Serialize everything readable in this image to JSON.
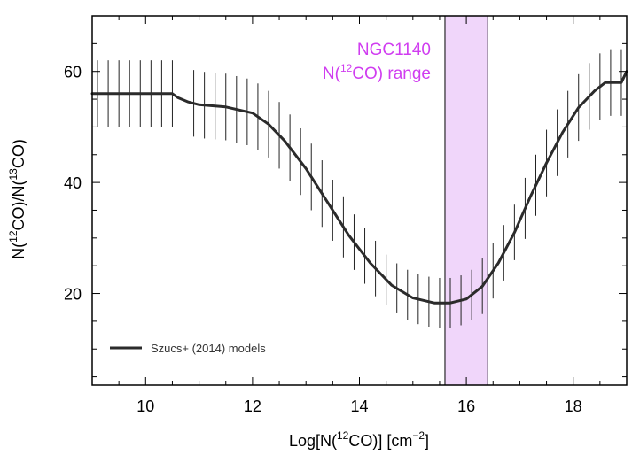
{
  "chart_data": {
    "type": "line",
    "xlabel": "Log[N(12CO)] [cm−2]",
    "xlabel_parts": {
      "pre": "Log[N(",
      "sup1": "12",
      "mid": "CO)] [cm",
      "sup2": "−2",
      "post": "]"
    },
    "ylabel": "N(12CO)/N(13CO)",
    "ylabel_parts": {
      "pre": "N(",
      "sup1": "12",
      "mid": "CO)/N(",
      "sup2": "13",
      "post": "CO)"
    },
    "xlim": [
      9.0,
      19.0
    ],
    "ylim": [
      3.5,
      70.0
    ],
    "xticks": [
      10,
      12,
      14,
      16,
      18
    ],
    "xtick_labels": [
      "10",
      "12",
      "14",
      "16",
      "18"
    ],
    "xminor_step": 0.5,
    "yticks": [
      20,
      40,
      60
    ],
    "ytick_labels": [
      "20",
      "40",
      "60"
    ],
    "yminor_step": 5,
    "grid": false,
    "legend": {
      "position": "bottom-left",
      "entries": [
        "Szucs+ (2014) models"
      ]
    },
    "shaded_band": {
      "x_range": [
        15.6,
        16.4
      ],
      "color": "#f0d6fa",
      "label_lines": [
        "NGC1140"
      ],
      "label_line2_parts": {
        "pre": "N(",
        "sup": "12",
        "post": "CO) range"
      },
      "label_color": "#d03df0"
    },
    "series": [
      {
        "name": "Szucs+ (2014) models",
        "color": "#2b2b2b",
        "x": [
          9.0,
          10.5,
          10.6,
          10.8,
          11.0,
          11.5,
          12.0,
          12.3,
          12.6,
          13.0,
          13.4,
          13.8,
          14.2,
          14.6,
          15.0,
          15.4,
          15.7,
          16.0,
          16.3,
          16.6,
          16.9,
          17.2,
          17.5,
          17.8,
          18.1,
          18.4,
          18.6,
          18.75,
          18.9,
          19.0
        ],
        "y": [
          56.0,
          56.0,
          55.3,
          54.5,
          54.0,
          53.6,
          52.5,
          50.5,
          47.5,
          42.5,
          36.5,
          30.5,
          25.5,
          21.5,
          19.2,
          18.3,
          18.3,
          19.0,
          21.3,
          25.5,
          31.0,
          37.5,
          43.5,
          49.0,
          53.5,
          56.5,
          58.0,
          58.0,
          58.0,
          60.0
        ],
        "error_x": [
          9.1,
          9.3,
          9.5,
          9.7,
          9.9,
          10.1,
          10.3,
          10.5,
          10.7,
          10.9,
          11.1,
          11.3,
          11.5,
          11.7,
          11.9,
          12.1,
          12.3,
          12.5,
          12.7,
          12.9,
          13.1,
          13.3,
          13.5,
          13.7,
          13.9,
          14.1,
          14.3,
          14.5,
          14.7,
          14.9,
          15.1,
          15.3,
          15.5,
          15.7,
          15.9,
          16.1,
          16.3,
          16.5,
          16.7,
          16.9,
          17.1,
          17.3,
          17.5,
          17.7,
          17.9,
          18.1,
          18.3,
          18.5,
          18.7,
          18.9
        ],
        "error_half": [
          6.0,
          6.0,
          6.0,
          6.0,
          6.0,
          6.0,
          6.0,
          6.0,
          6.0,
          6.0,
          6.0,
          6.0,
          6.0,
          6.0,
          6.0,
          6.0,
          6.0,
          6.0,
          6.0,
          6.0,
          6.0,
          6.0,
          5.5,
          5.5,
          5.0,
          5.0,
          5.0,
          4.5,
          4.5,
          4.5,
          4.5,
          4.5,
          4.5,
          4.5,
          4.5,
          4.5,
          5.0,
          5.0,
          5.0,
          5.0,
          5.5,
          5.5,
          6.0,
          6.0,
          6.0,
          6.0,
          6.0,
          6.0,
          6.0,
          6.0
        ]
      }
    ]
  }
}
